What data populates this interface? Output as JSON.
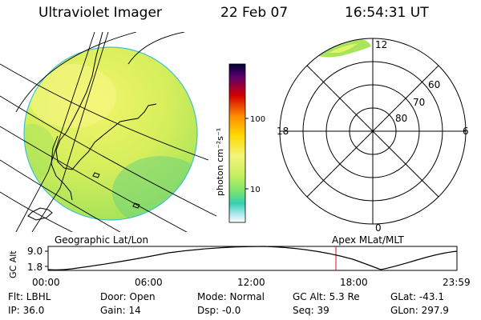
{
  "header": {
    "instrument": "Ultraviolet Imager",
    "date": "22 Feb 07",
    "time": "16:54:31 UT"
  },
  "colorbar": {
    "unit_label": "photon cm⁻²s⁻¹",
    "ticks": [
      "100",
      "10"
    ],
    "scale": "log",
    "colors": [
      "#000033",
      "#7a0080",
      "#d40000",
      "#ff8c00",
      "#ffd800",
      "#f4f47a",
      "#c8f060",
      "#7ee36a",
      "#35d0b0",
      "#90e0f0",
      "#ffffff"
    ]
  },
  "left_panel": {
    "label": "Geographic Lat/Lon"
  },
  "right_panel": {
    "label": "Apex MLat/MLT",
    "mlt_labels": {
      "top": "12",
      "bottom": "0",
      "left": "18",
      "right": "6"
    },
    "lat_labels": [
      "60",
      "70",
      "80"
    ]
  },
  "altitude_strip": {
    "ylabel": "GC Alt",
    "y_ticks": [
      "9.0",
      "1.8"
    ],
    "x_ticks": [
      "00:00",
      "06:00",
      "12:00",
      "18:00",
      "23:59"
    ],
    "current_time_marker": "16:54"
  },
  "info": {
    "flt": "Flt: LBHL",
    "ip": "IP: 36.0",
    "door": "Door: Open",
    "gain": "Gain: 14",
    "mode": "Mode: Normal",
    "dsp": "Dsp:  -0.0",
    "gc_alt": "GC Alt: 5.3 Re",
    "seq": "Seq: 39",
    "glat": "GLat: -43.1",
    "glon": "GLon: 297.9"
  }
}
